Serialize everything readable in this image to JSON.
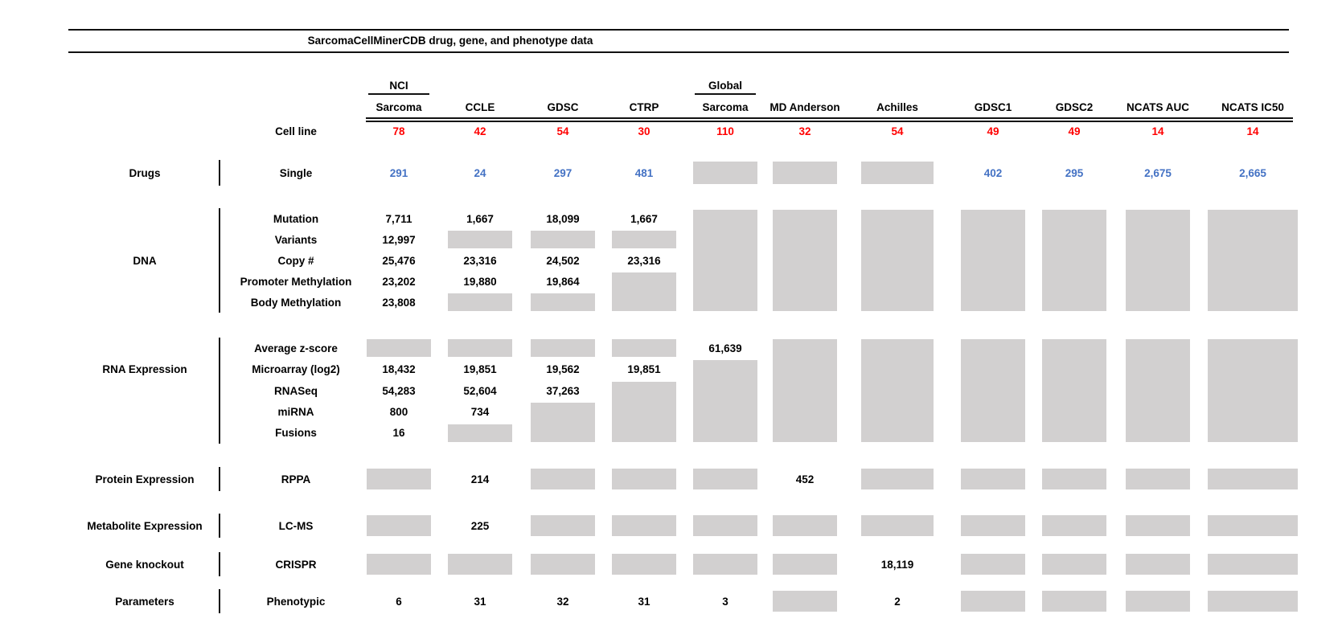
{
  "chart_data": {
    "type": "table",
    "title": "SarcomaCellMinerCDB drug, gene, and phenotype data",
    "gray_box_meaning": "data not available",
    "colors": {
      "red": "#ff0000",
      "blue": "#4472c4",
      "gray": "#d2d0d0",
      "text": "#000000"
    },
    "columns": [
      {
        "top": "NCI",
        "name": "Sarcoma"
      },
      {
        "top": "",
        "name": "CCLE"
      },
      {
        "top": "",
        "name": "GDSC"
      },
      {
        "top": "",
        "name": "CTRP"
      },
      {
        "top": "Global",
        "name": "Sarcoma"
      },
      {
        "top": "",
        "name": "MD Anderson"
      },
      {
        "top": "",
        "name": "Achilles"
      },
      {
        "top": "",
        "name": "GDSC1"
      },
      {
        "top": "",
        "name": "GDSC2"
      },
      {
        "top": "",
        "name": "NCATS AUC"
      },
      {
        "top": "",
        "name": "NCATS IC50"
      }
    ],
    "cell_line": {
      "label": "Cell line",
      "color": "red",
      "values": [
        "78",
        "42",
        "54",
        "30",
        "110",
        "32",
        "54",
        "49",
        "49",
        "14",
        "14"
      ]
    },
    "groups": [
      {
        "name": "Drugs",
        "rows": [
          {
            "label": "Single",
            "color": "blue",
            "cells": [
              "291",
              "24",
              "297",
              "481",
              "-",
              "-",
              "-",
              "402",
              "295",
              "2,675",
              "2,665"
            ]
          }
        ]
      },
      {
        "name": "DNA",
        "rows": [
          {
            "label": "Mutation",
            "cells": [
              "7,711",
              "1,667",
              "18,099",
              "1,667",
              "-",
              "-",
              "-",
              "-",
              "-",
              "-",
              "-"
            ]
          },
          {
            "label": "Variants",
            "cells": [
              "12,997",
              "-",
              "-",
              "-",
              "-",
              "-",
              "-",
              "-",
              "-",
              "-",
              "-"
            ]
          },
          {
            "label": "Copy #",
            "cells": [
              "25,476",
              "23,316",
              "24,502",
              "23,316",
              "-",
              "-",
              "-",
              "-",
              "-",
              "-",
              "-"
            ]
          },
          {
            "label": "Promoter Methylation",
            "cells": [
              "23,202",
              "19,880",
              "19,864",
              "-",
              "-",
              "-",
              "-",
              "-",
              "-",
              "-",
              "-"
            ]
          },
          {
            "label": "Body Methylation",
            "cells": [
              "23,808",
              "-",
              "-",
              "-",
              "-",
              "-",
              "-",
              "-",
              "-",
              "-",
              "-"
            ]
          }
        ]
      },
      {
        "name": "RNA Expression",
        "rows": [
          {
            "label": "Average z-score",
            "cells": [
              "-",
              "-",
              "-",
              "-",
              "61,639",
              "-",
              "-",
              "-",
              "-",
              "-",
              "-"
            ]
          },
          {
            "label": "Microarray (log2)",
            "cells": [
              "18,432",
              "19,851",
              "19,562",
              "19,851",
              "-",
              "-",
              "-",
              "-",
              "-",
              "-",
              "-"
            ]
          },
          {
            "label": "RNASeq",
            "cells": [
              "54,283",
              "52,604",
              "37,263",
              "-",
              "-",
              "-",
              "-",
              "-",
              "-",
              "-",
              "-"
            ]
          },
          {
            "label": "miRNA",
            "cells": [
              "800",
              "734",
              "-",
              "-",
              "-",
              "-",
              "-",
              "-",
              "-",
              "-",
              "-"
            ]
          },
          {
            "label": "Fusions",
            "cells": [
              "16",
              "-",
              "-",
              "-",
              "-",
              "-",
              "-",
              "-",
              "-",
              "-",
              "-"
            ]
          }
        ]
      },
      {
        "name": "Protein Expression",
        "rows": [
          {
            "label": "RPPA",
            "cells": [
              "-",
              "214",
              "-",
              "-",
              "-",
              "452",
              "-",
              "-",
              "-",
              "-",
              "-"
            ]
          }
        ]
      },
      {
        "name": "Metabolite Expression",
        "rows": [
          {
            "label": "LC-MS",
            "cells": [
              "-",
              "225",
              "-",
              "-",
              "-",
              "-",
              "-",
              "-",
              "-",
              "-",
              "-"
            ]
          }
        ]
      },
      {
        "name": "Gene knockout",
        "rows": [
          {
            "label": "CRISPR",
            "cells": [
              "-",
              "-",
              "-",
              "-",
              "-",
              "-",
              "18,119",
              "-",
              "-",
              "-",
              "-"
            ]
          }
        ]
      },
      {
        "name": "Parameters",
        "rows": [
          {
            "label": "Phenotypic",
            "cells": [
              "6",
              "31",
              "32",
              "31",
              "3",
              "-",
              "2",
              "-",
              "-",
              "-",
              "-"
            ]
          }
        ]
      }
    ]
  }
}
